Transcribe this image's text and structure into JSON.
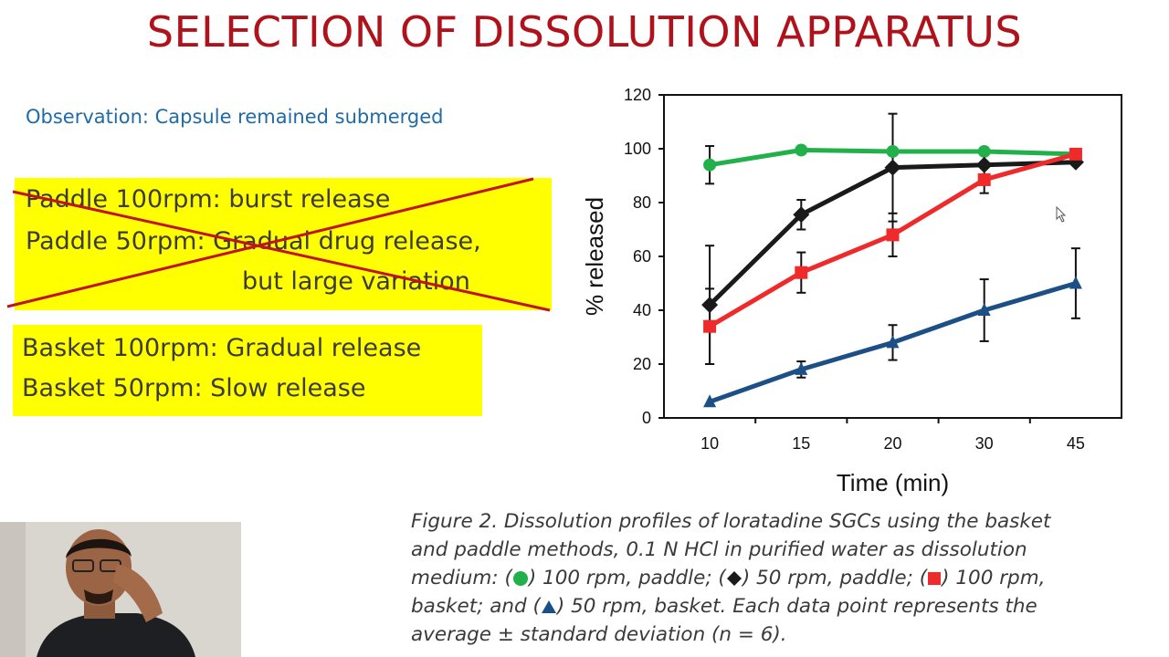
{
  "slide": {
    "title": "SELECTION OF DISSOLUTION APPARATUS",
    "observation": "Observation: Capsule remained submerged",
    "paddle_lines": [
      "Paddle 100rpm: burst release",
      "Paddle 50rpm: Gradual drug release,",
      "but large variation"
    ],
    "basket_lines": [
      "Basket 100rpm: Gradual release",
      "Basket 50rpm: Slow release"
    ]
  },
  "caption": {
    "line1": "Figure 2. Dissolution profiles of loratadine SGCs using the basket",
    "line2": "and paddle methods, 0.1 N HCl in purified water as dissolution",
    "line3_a": "medium: (",
    "line3_b": ") 100 rpm, paddle; (",
    "line3_c": ") 50 rpm, paddle; (",
    "line3_d": ") 100 rpm,",
    "line4_a": "basket; and (",
    "line4_b": ") 50 rpm, basket. Each data point represents the",
    "line5": "average ± standard deviation (n = 6)."
  },
  "colors": {
    "title": "#b0121b",
    "observation": "#1f6aa8",
    "highlight": "#ffff00",
    "strike": "#c0141c",
    "green": "#22b04b",
    "black": "#1a1a1a",
    "red": "#ee2a2a",
    "blue": "#1b4f86"
  },
  "chart_data": {
    "type": "line",
    "xlabel": "Time (min)",
    "ylabel": "% released",
    "categories": [
      "10",
      "15",
      "20",
      "30",
      "45"
    ],
    "ylim": [
      0,
      120
    ],
    "yticks": [
      0,
      20,
      40,
      60,
      80,
      100,
      120
    ],
    "grid": false,
    "series": [
      {
        "marker": "circle",
        "color": "#22b04b",
        "values": [
          94,
          99.5,
          99,
          99,
          98
        ],
        "err": [
          7,
          0,
          0,
          0,
          0
        ]
      },
      {
        "marker": "diamond",
        "color": "#1a1a1a",
        "values": [
          42,
          75.5,
          93,
          94,
          95
        ],
        "err": [
          22,
          5.5,
          20,
          0,
          0
        ]
      },
      {
        "marker": "square",
        "color": "#ee2a2a",
        "values": [
          34,
          54,
          68,
          88.5,
          98
        ],
        "err": [
          14,
          7.5,
          8,
          5,
          0
        ]
      },
      {
        "marker": "triangle",
        "color": "#1b4f86",
        "values": [
          6,
          18,
          28,
          40,
          50
        ],
        "err": [
          0,
          3,
          6.5,
          11.5,
          13
        ]
      }
    ]
  }
}
